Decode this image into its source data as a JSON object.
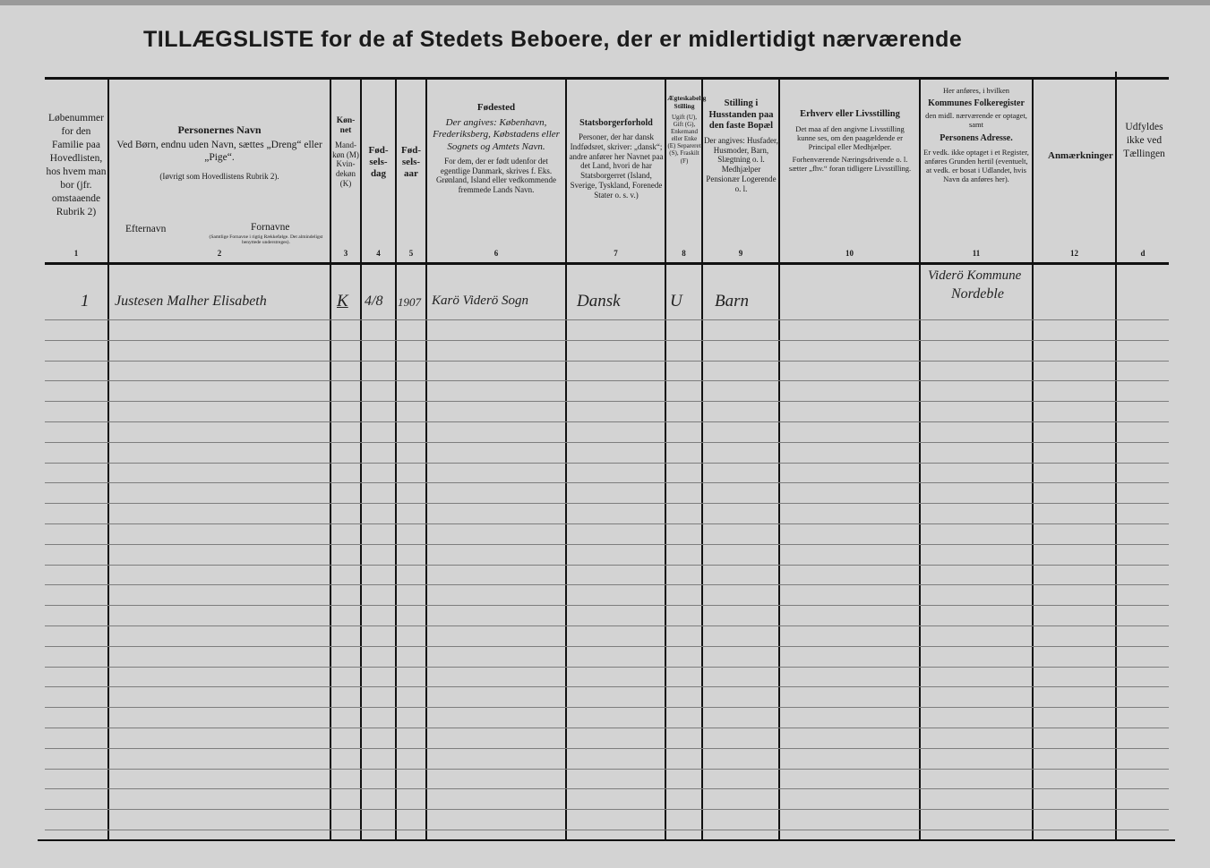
{
  "title": "TILLÆGSLISTE for de af Stedets Beboere, der er midlertidigt nærværende",
  "columns": [
    {
      "num": "1",
      "text": "Løbenummer for den Familie paa Hovedlisten, hos hvem man bor (jfr. omstaaende Rubrik 2)"
    },
    {
      "num": "2",
      "heading": "Personernes Navn",
      "text": "Ved Børn, endnu uden Navn, sættes „Dreng“ eller „Pige“.",
      "note": "(Iøvrigt som Hovedlistens Rubrik 2).",
      "sub1": "Efternavn",
      "sub2": "Fornavne",
      "sub2_note": "(Samtlige Fornavne i rigtig Rækkefølge. Det almindeligst benyttede understreges)."
    },
    {
      "num": "3",
      "heading": "Køn-net",
      "text": "Mand-køn (M) Kvin-dekøn (K)"
    },
    {
      "num": "4",
      "heading": "Fød-sels-dag"
    },
    {
      "num": "5",
      "heading": "Fød-sels-aar"
    },
    {
      "num": "6",
      "heading": "Fødested",
      "text": "Der angives: København, Frederiksberg, Købstadens eller Sognets og Amtets Navn.",
      "note": "For dem, der er født udenfor det egentlige Danmark, skrives f. Eks. Grønland, Island eller vedkommende fremmede Lands Navn."
    },
    {
      "num": "7",
      "heading": "Statsborgerforhold",
      "text": "Personer, der har dansk Indfødsret, skriver: „dansk“; andre anfører her Navnet paa det Land, hvori de har Statsborgerret (Island, Sverige, Tyskland, Forenede Stater o. s. v.)"
    },
    {
      "num": "8",
      "heading": "Ægteskabelig Stilling",
      "text": "Ugift (U), Gift (G), Enkemand eller Enke (E) Separeret (S), Fraskilt (F)"
    },
    {
      "num": "9",
      "heading": "Stilling i Husstanden paa den faste Bopæl",
      "text": "Der angives: Husfader, Husmoder, Barn, Slægtning o. l. Medhjælper Pensionær Logerende o. l."
    },
    {
      "num": "10",
      "heading": "Erhverv eller Livsstilling",
      "text": "Det maa af den angivne Livsstilling kunne ses, om den paagældende er Principal eller Medhjælper.",
      "note": "Forhenværende Næringsdrivende o. l. sætter „fhv.“ foran tidligere Livsstilling."
    },
    {
      "num": "11",
      "pre": "Her anføres, i hvilken",
      "heading": "Kommunes Folkeregister",
      "text": "den midl. nærværende er optaget, samt",
      "heading2": "Personens Adresse.",
      "note": "Er vedk. ikke optaget i et Register, anføres Grunden hertil (eventuelt, at vedk. er bosat i Udlandet, hvis Navn da anføres her)."
    },
    {
      "num": "12",
      "heading": "Anmærkninger"
    },
    {
      "num": "d",
      "text": "Udfyldes ikke ved Tællingen"
    }
  ],
  "entries": [
    {
      "lobenummer": "1",
      "navn": "Justesen Malher Elisabeth",
      "kon": "K",
      "fodselsdag": "4/8",
      "fodselsaar": "1907",
      "fodested": "Karö Viderö Sogn",
      "statsborger": "Dansk",
      "aegteskab": "U",
      "stilling": "Barn",
      "erhverv": "",
      "folkeregister": "Viderö Kommune",
      "adresse": "Nordeble",
      "anmaerkninger": ""
    }
  ]
}
